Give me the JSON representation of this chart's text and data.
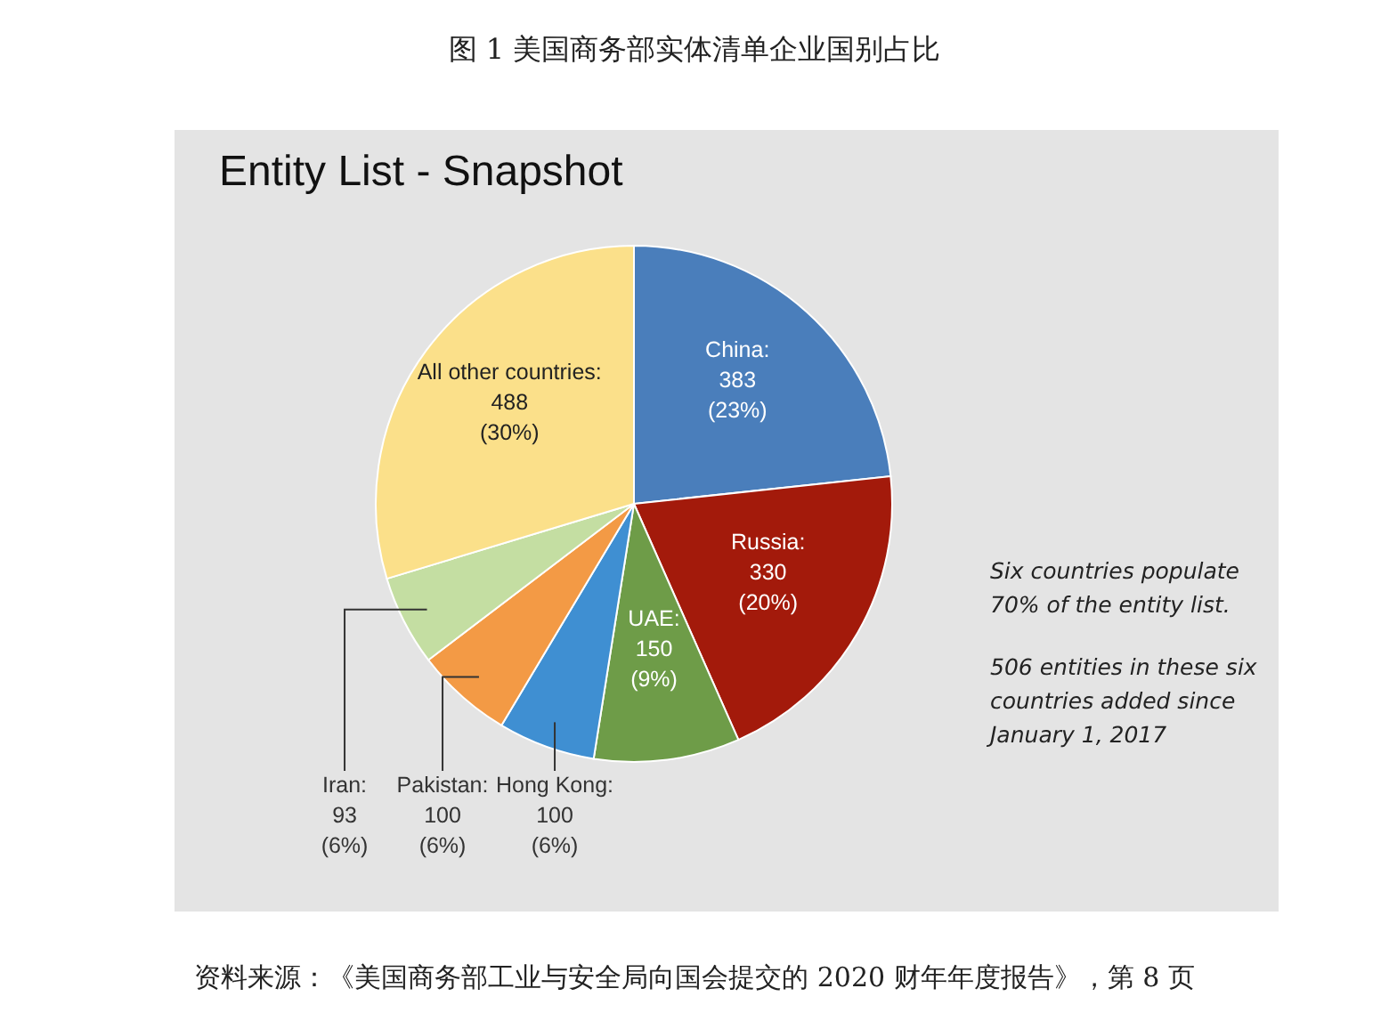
{
  "chart_data": {
    "type": "pie",
    "title": "图 1 美国商务部实体清单企业国别占比",
    "subtitle": "Entity List - Snapshot",
    "categories": [
      "China",
      "Russia",
      "UAE",
      "Hong Kong",
      "Pakistan",
      "Iran",
      "All other countries"
    ],
    "values": [
      383,
      330,
      150,
      100,
      100,
      93,
      488
    ],
    "value_labels": [
      ":\n383\n(23%)",
      ":\n330\n(20%)",
      ":\n150\n(9%)",
      ":\n100\n(6%)",
      ":\n100\n(6%)",
      ":\n93\n(6%)",
      ":\n488\n(30%)"
    ],
    "colors": [
      "#4a7ebb",
      "#a31a0b",
      "#6e9c48",
      "#3f8fd2",
      "#f39a45",
      "#c4dea2",
      "#fbe08a"
    ],
    "annotations": [
      "Six countries populate 70% of the entity list.",
      "506 entities in these six countries added since January 1, 2017",
      "资料来源：《美国商务部工业与安全局向国会提交的 2020 财年年度报告》，第 8 页"
    ]
  }
}
